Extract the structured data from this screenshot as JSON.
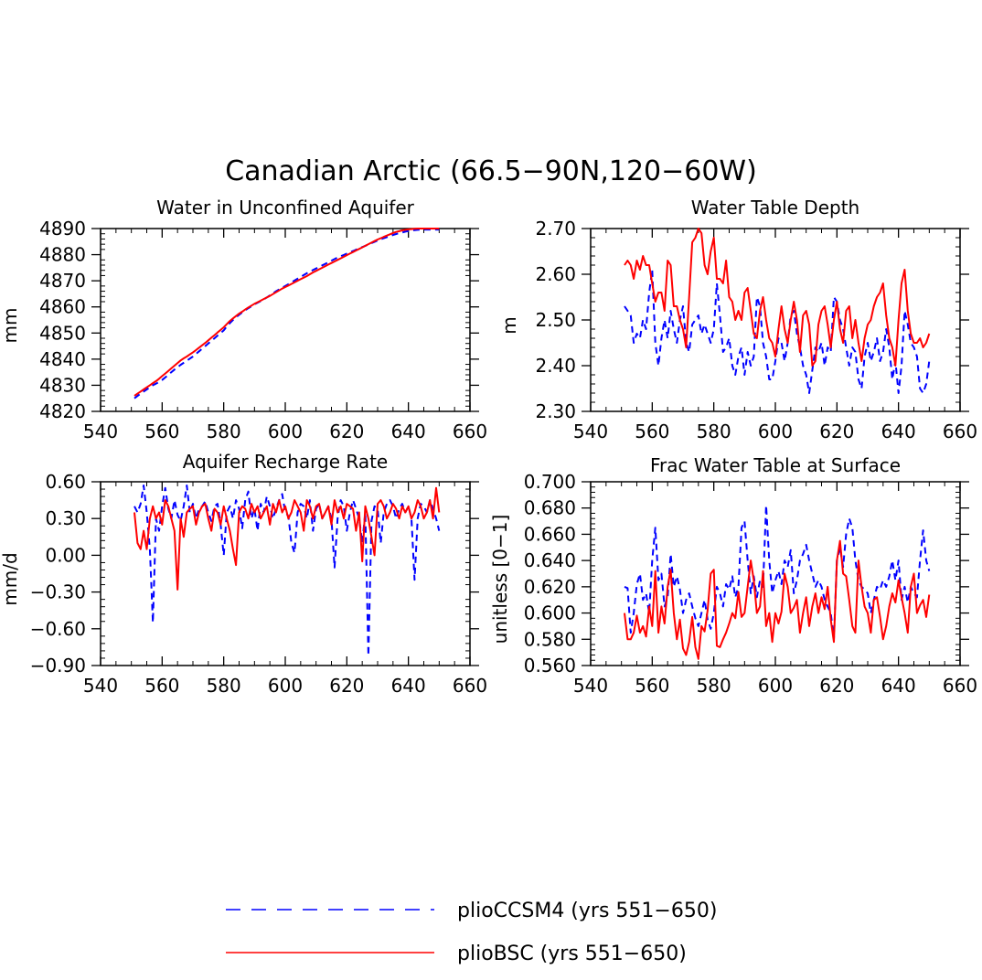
{
  "title": "Canadian Arctic (66.5−90N,120−60W)",
  "legend": [
    {
      "label": "plioCCSM4 (yrs 551−650)",
      "color": "#0000ff",
      "dash": "dashed"
    },
    {
      "label": "plioBSC (yrs 551−650)",
      "color": "#ff0000",
      "dash": "solid"
    }
  ],
  "chart_data": [
    {
      "type": "line",
      "title": "Water in Unconfined Aquifer",
      "ylabel": "mm",
      "xlim": [
        540,
        660
      ],
      "ylim": [
        4820,
        4890
      ],
      "xticks": [
        540,
        560,
        580,
        600,
        620,
        640,
        660
      ],
      "xtick_labels": [
        "540",
        "560",
        "580",
        "600",
        "620",
        "640",
        "660"
      ],
      "yticks": [
        4820,
        4830,
        4840,
        4850,
        4860,
        4870,
        4880,
        4890
      ],
      "ytick_labels": [
        "4820",
        "4830",
        "4840",
        "4850",
        "4860",
        "4870",
        "4880",
        "4890"
      ],
      "x_start": 551,
      "series": [
        {
          "name": "plioCCSM4 (yrs 551−650)",
          "color": "#0000ff",
          "dash": "dashed",
          "values": [
            4825.0,
            4825.9,
            4826.8,
            4827.6,
            4828.4,
            4829.2,
            4830.0,
            4830.6,
            4831.3,
            4832.0,
            4833.0,
            4834.0,
            4835.0,
            4836.0,
            4836.9,
            4837.8,
            4838.6,
            4839.4,
            4840.2,
            4841.0,
            4842.0,
            4843.0,
            4844.0,
            4845.0,
            4846.0,
            4847.0,
            4848.0,
            4849.0,
            4850.0,
            4851.0,
            4852.5,
            4853.8,
            4855.0,
            4856.0,
            4857.0,
            4857.9,
            4858.7,
            4859.5,
            4860.2,
            4861.0,
            4861.6,
            4862.2,
            4862.9,
            4863.6,
            4864.4,
            4865.2,
            4866.0,
            4866.7,
            4867.4,
            4868.0,
            4868.7,
            4869.4,
            4870.1,
            4870.8,
            4871.5,
            4872.2,
            4872.9,
            4873.5,
            4874.1,
            4874.7,
            4875.3,
            4875.9,
            4876.5,
            4877.1,
            4877.7,
            4878.3,
            4878.9,
            4879.4,
            4879.9,
            4880.4,
            4880.9,
            4881.4,
            4881.9,
            4882.4,
            4882.9,
            4883.4,
            4883.9,
            4884.4,
            4884.9,
            4885.4,
            4885.9,
            4886.3,
            4886.7,
            4887.1,
            4887.5,
            4887.9,
            4888.2,
            4888.5,
            4888.8,
            4889.1,
            4889.3,
            4889.4,
            4889.5,
            4889.6,
            4889.6,
            4889.6,
            4889.6,
            4889.6,
            4889.6,
            4889.6
          ]
        },
        {
          "name": "plioBSC (yrs 551−650)",
          "color": "#ff0000",
          "dash": "solid",
          "values": [
            4826.0,
            4826.8,
            4827.6,
            4828.4,
            4829.2,
            4830.0,
            4830.8,
            4831.6,
            4832.5,
            4833.5,
            4834.5,
            4835.5,
            4836.5,
            4837.5,
            4838.5,
            4839.5,
            4840.3,
            4841.0,
            4841.8,
            4842.6,
            4843.5,
            4844.4,
            4845.3,
            4846.2,
            4847.2,
            4848.2,
            4849.2,
            4850.2,
            4851.2,
            4852.2,
            4853.4,
            4854.6,
            4855.6,
            4856.5,
            4857.4,
            4858.2,
            4859.0,
            4859.8,
            4860.5,
            4861.2,
            4861.8,
            4862.4,
            4863.0,
            4863.6,
            4864.2,
            4864.9,
            4865.6,
            4866.3,
            4867.0,
            4867.6,
            4868.2,
            4868.8,
            4869.4,
            4870.0,
            4870.6,
            4871.2,
            4871.8,
            4872.5,
            4873.2,
            4873.8,
            4874.4,
            4875.0,
            4875.6,
            4876.2,
            4876.8,
            4877.4,
            4878.0,
            4878.6,
            4879.2,
            4879.8,
            4880.4,
            4881.0,
            4881.6,
            4882.2,
            4882.8,
            4883.4,
            4884.0,
            4884.6,
            4885.2,
            4885.8,
            4886.3,
            4886.8,
            4887.3,
            4887.8,
            4888.3,
            4888.7,
            4889.0,
            4889.3,
            4889.5,
            4889.7,
            4889.8,
            4889.9,
            4890.0,
            4890.0,
            4890.0,
            4890.0,
            4890.0,
            4890.0,
            4890.0,
            4890.0
          ]
        }
      ]
    },
    {
      "type": "line",
      "title": "Water Table Depth",
      "ylabel": "m",
      "xlim": [
        540,
        660
      ],
      "ylim": [
        2.3,
        2.7
      ],
      "xticks": [
        540,
        560,
        580,
        600,
        620,
        640,
        660
      ],
      "xtick_labels": [
        "540",
        "560",
        "580",
        "600",
        "620",
        "640",
        "660"
      ],
      "yticks": [
        2.3,
        2.4,
        2.5,
        2.6,
        2.7
      ],
      "ytick_labels": [
        "2.30",
        "2.40",
        "2.50",
        "2.60",
        "2.70"
      ],
      "x_start": 551,
      "series": [
        {
          "name": "plioCCSM4 (yrs 551−650)",
          "color": "#0000ff",
          "dash": "dashed",
          "values": [
            2.53,
            2.52,
            2.51,
            2.45,
            2.47,
            2.46,
            2.5,
            2.48,
            2.56,
            2.61,
            2.45,
            2.4,
            2.46,
            2.5,
            2.46,
            2.52,
            2.48,
            2.45,
            2.5,
            2.53,
            2.45,
            2.43,
            2.49,
            2.5,
            2.51,
            2.47,
            2.49,
            2.47,
            2.45,
            2.48,
            2.58,
            2.51,
            2.43,
            2.44,
            2.46,
            2.4,
            2.38,
            2.42,
            2.44,
            2.38,
            2.43,
            2.4,
            2.42,
            2.55,
            2.53,
            2.45,
            2.42,
            2.37,
            2.37,
            2.41,
            2.46,
            2.45,
            2.41,
            2.45,
            2.51,
            2.52,
            2.47,
            2.44,
            2.4,
            2.38,
            2.34,
            2.39,
            2.44,
            2.43,
            2.45,
            2.4,
            2.44,
            2.43,
            2.55,
            2.54,
            2.5,
            2.48,
            2.44,
            2.4,
            2.44,
            2.43,
            2.37,
            2.35,
            2.42,
            2.45,
            2.41,
            2.43,
            2.46,
            2.41,
            2.43,
            2.48,
            2.44,
            2.37,
            2.41,
            2.34,
            2.4,
            2.52,
            2.49,
            2.45,
            2.44,
            2.42,
            2.35,
            2.34,
            2.36,
            2.41
          ]
        },
        {
          "name": "plioBSC (yrs 551−650)",
          "color": "#ff0000",
          "dash": "solid",
          "values": [
            2.62,
            2.63,
            2.62,
            2.59,
            2.63,
            2.61,
            2.64,
            2.62,
            2.62,
            2.58,
            2.54,
            2.56,
            2.56,
            2.52,
            2.63,
            2.62,
            2.53,
            2.53,
            2.5,
            2.48,
            2.44,
            2.55,
            2.67,
            2.68,
            2.7,
            2.69,
            2.62,
            2.6,
            2.65,
            2.68,
            2.59,
            2.59,
            2.58,
            2.63,
            2.55,
            2.54,
            2.5,
            2.52,
            2.5,
            2.56,
            2.57,
            2.52,
            2.47,
            2.46,
            2.52,
            2.55,
            2.5,
            2.46,
            2.45,
            2.42,
            2.48,
            2.53,
            2.48,
            2.45,
            2.5,
            2.54,
            2.5,
            2.43,
            2.51,
            2.52,
            2.49,
            2.4,
            2.41,
            2.49,
            2.52,
            2.53,
            2.49,
            2.44,
            2.5,
            2.54,
            2.48,
            2.45,
            2.52,
            2.53,
            2.46,
            2.5,
            2.45,
            2.41,
            2.46,
            2.49,
            2.5,
            2.53,
            2.55,
            2.56,
            2.58,
            2.51,
            2.46,
            2.44,
            2.4,
            2.5,
            2.58,
            2.61,
            2.52,
            2.47,
            2.45,
            2.45,
            2.46,
            2.44,
            2.45,
            2.47
          ]
        }
      ]
    },
    {
      "type": "line",
      "title": "Aquifer Recharge Rate",
      "ylabel": "mm/d",
      "xlim": [
        540,
        660
      ],
      "ylim": [
        -0.9,
        0.6
      ],
      "xticks": [
        540,
        560,
        580,
        600,
        620,
        640,
        660
      ],
      "xtick_labels": [
        "540",
        "560",
        "580",
        "600",
        "620",
        "640",
        "660"
      ],
      "yticks": [
        -0.9,
        -0.6,
        -0.3,
        0.0,
        0.3,
        0.6
      ],
      "ytick_labels": [
        "−0.90",
        "−0.60",
        "−0.30",
        "0.00",
        "0.30",
        "0.60"
      ],
      "x_start": 551,
      "series": [
        {
          "name": "plioCCSM4 (yrs 551−650)",
          "color": "#0000ff",
          "dash": "dashed",
          "values": [
            0.4,
            0.35,
            0.42,
            0.57,
            0.35,
            0.05,
            -0.55,
            0.3,
            0.2,
            0.4,
            0.55,
            0.38,
            0.3,
            0.45,
            0.33,
            0.28,
            0.4,
            0.57,
            0.35,
            0.42,
            0.3,
            0.38,
            0.4,
            0.44,
            0.35,
            0.28,
            0.4,
            0.42,
            0.25,
            0.0,
            0.35,
            0.4,
            0.3,
            0.45,
            0.38,
            0.22,
            0.45,
            0.52,
            0.3,
            0.38,
            0.2,
            0.42,
            0.35,
            0.48,
            0.4,
            0.3,
            0.38,
            0.45,
            0.5,
            0.35,
            0.32,
            0.1,
            0.02,
            0.35,
            0.42,
            0.4,
            0.3,
            0.45,
            0.2,
            0.38,
            0.42,
            0.3,
            0.35,
            0.4,
            0.3,
            -0.1,
            0.3,
            0.45,
            0.4,
            0.2,
            0.35,
            0.45,
            0.38,
            0.3,
            0.1,
            0.35,
            -0.82,
            0.28,
            0.4,
            0.38,
            0.1,
            0.35,
            0.42,
            0.45,
            0.4,
            0.3,
            0.38,
            0.42,
            0.35,
            0.4,
            0.3,
            -0.2,
            0.3,
            0.42,
            0.4,
            0.35,
            0.45,
            0.38,
            0.3,
            0.2
          ]
        },
        {
          "name": "plioBSC (yrs 551−650)",
          "color": "#ff0000",
          "dash": "solid",
          "values": [
            0.35,
            0.1,
            0.05,
            0.2,
            0.05,
            0.3,
            0.4,
            0.3,
            0.35,
            0.25,
            0.45,
            0.4,
            0.3,
            0.2,
            -0.28,
            0.3,
            0.15,
            0.35,
            0.38,
            0.4,
            0.25,
            0.35,
            0.4,
            0.42,
            0.3,
            0.2,
            0.38,
            0.35,
            0.25,
            0.4,
            0.3,
            0.2,
            0.05,
            -0.08,
            0.35,
            0.4,
            0.38,
            0.3,
            0.42,
            0.35,
            0.4,
            0.3,
            0.35,
            0.4,
            0.25,
            0.42,
            0.35,
            0.45,
            0.35,
            0.4,
            0.3,
            0.35,
            0.45,
            0.4,
            0.35,
            0.2,
            0.45,
            0.4,
            0.3,
            0.4,
            0.42,
            0.3,
            0.35,
            0.4,
            0.25,
            0.45,
            0.35,
            0.4,
            0.3,
            0.42,
            0.4,
            0.38,
            0.2,
            0.35,
            -0.05,
            0.4,
            0.3,
            0.15,
            0.0,
            0.42,
            0.45,
            0.4,
            0.3,
            0.35,
            0.42,
            0.38,
            0.3,
            0.4,
            0.35,
            0.4,
            0.3,
            0.35,
            0.45,
            0.4,
            0.3,
            0.35,
            0.45,
            0.3,
            0.55,
            0.35
          ]
        }
      ]
    },
    {
      "type": "line",
      "title": "Frac Water Table at Surface",
      "ylabel": "unitless [0−1]",
      "xlim": [
        540,
        660
      ],
      "ylim": [
        0.56,
        0.7
      ],
      "xticks": [
        540,
        560,
        580,
        600,
        620,
        640,
        660
      ],
      "xtick_labels": [
        "540",
        "560",
        "580",
        "600",
        "620",
        "640",
        "660"
      ],
      "yticks": [
        0.56,
        0.58,
        0.6,
        0.62,
        0.64,
        0.66,
        0.68,
        0.7
      ],
      "ytick_labels": [
        "0.560",
        "0.580",
        "0.600",
        "0.620",
        "0.640",
        "0.660",
        "0.680",
        "0.700"
      ],
      "x_start": 551,
      "series": [
        {
          "name": "plioCCSM4 (yrs 551−650)",
          "color": "#0000ff",
          "dash": "dashed",
          "values": [
            0.62,
            0.619,
            0.585,
            0.6,
            0.622,
            0.63,
            0.61,
            0.615,
            0.6,
            0.64,
            0.665,
            0.625,
            0.63,
            0.605,
            0.612,
            0.645,
            0.62,
            0.628,
            0.618,
            0.6,
            0.61,
            0.615,
            0.605,
            0.596,
            0.59,
            0.6,
            0.61,
            0.595,
            0.588,
            0.6,
            0.62,
            0.615,
            0.605,
            0.622,
            0.618,
            0.628,
            0.612,
            0.62,
            0.665,
            0.67,
            0.64,
            0.615,
            0.628,
            0.612,
            0.625,
            0.62,
            0.682,
            0.64,
            0.615,
            0.625,
            0.632,
            0.622,
            0.64,
            0.635,
            0.648,
            0.615,
            0.625,
            0.64,
            0.645,
            0.652,
            0.64,
            0.63,
            0.62,
            0.625,
            0.62,
            0.61,
            0.605,
            0.6,
            0.58,
            0.64,
            0.65,
            0.635,
            0.66,
            0.672,
            0.665,
            0.64,
            0.625,
            0.62,
            0.618,
            0.615,
            0.6,
            0.61,
            0.62,
            0.618,
            0.625,
            0.62,
            0.628,
            0.64,
            0.625,
            0.64,
            0.61,
            0.62,
            0.608,
            0.62,
            0.615,
            0.612,
            0.64,
            0.663,
            0.64,
            0.632
          ]
        },
        {
          "name": "plioBSC (yrs 551−650)",
          "color": "#ff0000",
          "dash": "solid",
          "values": [
            0.6,
            0.58,
            0.58,
            0.585,
            0.598,
            0.585,
            0.59,
            0.582,
            0.605,
            0.59,
            0.632,
            0.585,
            0.605,
            0.592,
            0.62,
            0.633,
            0.6,
            0.58,
            0.595,
            0.573,
            0.568,
            0.578,
            0.597,
            0.574,
            0.565,
            0.59,
            0.586,
            0.602,
            0.63,
            0.633,
            0.575,
            0.574,
            0.58,
            0.585,
            0.592,
            0.6,
            0.596,
            0.616,
            0.597,
            0.6,
            0.62,
            0.64,
            0.625,
            0.6,
            0.605,
            0.632,
            0.59,
            0.6,
            0.578,
            0.6,
            0.592,
            0.601,
            0.63,
            0.62,
            0.6,
            0.604,
            0.61,
            0.585,
            0.6,
            0.612,
            0.59,
            0.605,
            0.615,
            0.6,
            0.612,
            0.603,
            0.62,
            0.595,
            0.578,
            0.64,
            0.655,
            0.63,
            0.628,
            0.61,
            0.59,
            0.585,
            0.64,
            0.62,
            0.605,
            0.6,
            0.585,
            0.61,
            0.612,
            0.597,
            0.58,
            0.59,
            0.605,
            0.615,
            0.608,
            0.625,
            0.612,
            0.6,
            0.585,
            0.62,
            0.63,
            0.6,
            0.606,
            0.61,
            0.597,
            0.614
          ]
        }
      ]
    }
  ]
}
